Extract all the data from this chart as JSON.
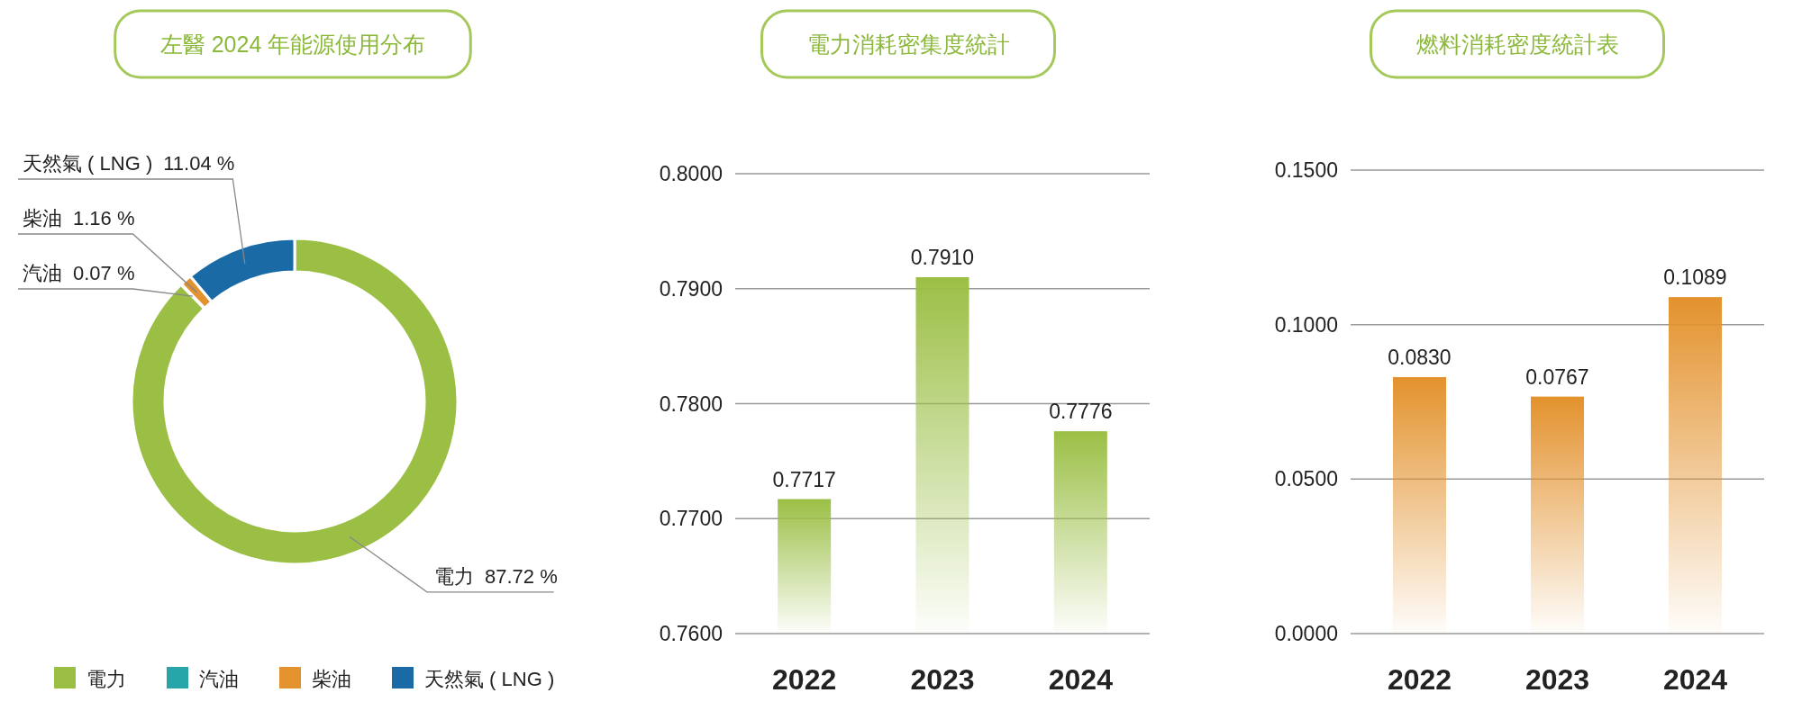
{
  "chart_data": [
    {
      "type": "donut",
      "title": "左醫 2024 年能源使用分布",
      "categories": [
        "電力",
        "汽油",
        "柴油",
        "天然氣 ( LNG )"
      ],
      "values": [
        87.72,
        0.07,
        1.16,
        11.04
      ],
      "colors": [
        "#9bbf45",
        "#26a6a8",
        "#e3922d",
        "#1a6aa6"
      ],
      "value_labels": [
        "87.72 %",
        "0.07 %",
        "1.16 %",
        "11.04 %"
      ],
      "legend": "bottom"
    },
    {
      "type": "bar",
      "title": "電力消耗密集度統計",
      "categories": [
        "2022",
        "2023",
        "2024"
      ],
      "values": [
        0.7717,
        0.791,
        0.7776
      ],
      "color": "#9bbf45",
      "value_labels": [
        "0.7717",
        "0.7910",
        "0.7776"
      ],
      "ylim": [
        0.76,
        0.8
      ],
      "yticks": [
        {
          "value": 0.76,
          "label": "0.7600"
        },
        {
          "value": 0.77,
          "label": "0.7700"
        },
        {
          "value": 0.78,
          "label": "0.7800"
        },
        {
          "value": 0.79,
          "label": "0.7900"
        },
        {
          "value": 0.8,
          "label": "0.8000"
        }
      ],
      "grid": "y"
    },
    {
      "type": "bar",
      "title": "燃料消耗密度統計表",
      "categories": [
        "2022",
        "2023",
        "2024"
      ],
      "values": [
        0.083,
        0.0767,
        0.1089
      ],
      "color": "#e3922d",
      "value_labels": [
        "0.0830",
        "0.0767",
        "0.1089"
      ],
      "ylim": [
        0,
        0.15
      ],
      "yticks": [
        {
          "value": 0,
          "label": "0.0000"
        },
        {
          "value": 0.05,
          "label": "0.0500"
        },
        {
          "value": 0.1,
          "label": "0.1000"
        },
        {
          "value": 0.15,
          "label": "0.1500"
        }
      ],
      "grid": "y"
    }
  ]
}
